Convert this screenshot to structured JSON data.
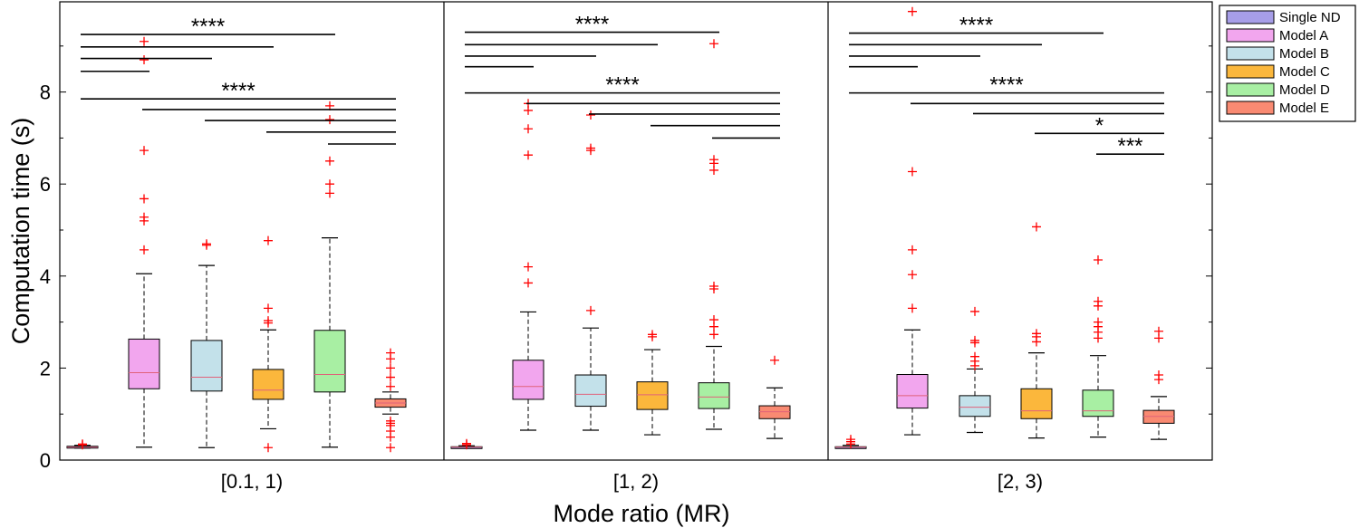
{
  "chart_data": {
    "type": "box",
    "xlabel": "Mode ratio (MR)",
    "ylabel": "Computation time (s)",
    "ylim": [
      0,
      10
    ],
    "yticks": [
      0,
      2,
      4,
      6,
      8
    ],
    "groups": [
      "[0.1, 1)",
      "[1, 2)",
      "[2, 3)"
    ],
    "series": [
      {
        "name": "Single ND",
        "color": "#a79ee8"
      },
      {
        "name": "Model A",
        "color": "#f2a6ee"
      },
      {
        "name": "Model B",
        "color": "#c3e1ea"
      },
      {
        "name": "Model C",
        "color": "#fbb73c"
      },
      {
        "name": "Model D",
        "color": "#a8efa3"
      },
      {
        "name": "Model E",
        "color": "#f98a72"
      }
    ],
    "boxes": [
      [
        {
          "q1": 0.27,
          "median": 0.28,
          "q3": 0.3,
          "whisker_low": 0.26,
          "whisker_high": 0.32,
          "outliers": [
            0.33,
            0.35
          ]
        },
        {
          "q1": 1.55,
          "median": 1.9,
          "q3": 2.63,
          "whisker_low": 0.28,
          "whisker_high": 4.05,
          "outliers": [
            4.57,
            5.2,
            5.28,
            5.68,
            6.73,
            8.7,
            9.1
          ]
        },
        {
          "q1": 1.5,
          "median": 1.8,
          "q3": 2.6,
          "whisker_low": 0.27,
          "whisker_high": 4.23,
          "outliers": [
            4.67,
            4.7
          ]
        },
        {
          "q1": 1.32,
          "median": 1.52,
          "q3": 1.97,
          "whisker_low": 0.68,
          "whisker_high": 2.83,
          "outliers": [
            0.27,
            2.98,
            3.03,
            3.3,
            4.77
          ]
        },
        {
          "q1": 1.48,
          "median": 1.86,
          "q3": 2.82,
          "whisker_low": 0.28,
          "whisker_high": 4.83,
          "outliers": [
            5.8,
            6.0,
            6.5,
            7.4,
            7.7
          ]
        },
        {
          "q1": 1.15,
          "median": 1.24,
          "q3": 1.33,
          "whisker_low": 1.0,
          "whisker_high": 1.48,
          "outliers": [
            0.27,
            0.5,
            0.63,
            0.75,
            0.8,
            0.85,
            1.6,
            1.8,
            2.0,
            2.2,
            2.33
          ]
        }
      ],
      [
        {
          "q1": 0.27,
          "median": 0.28,
          "q3": 0.29,
          "whisker_low": 0.26,
          "whisker_high": 0.31,
          "outliers": [
            0.33,
            0.36
          ]
        },
        {
          "q1": 1.32,
          "median": 1.6,
          "q3": 2.17,
          "whisker_low": 0.65,
          "whisker_high": 3.22,
          "outliers": [
            3.85,
            4.2,
            6.63,
            7.2,
            7.6,
            7.75
          ]
        },
        {
          "q1": 1.17,
          "median": 1.43,
          "q3": 1.85,
          "whisker_low": 0.65,
          "whisker_high": 2.87,
          "outliers": [
            3.25,
            6.73,
            6.78,
            7.5
          ]
        },
        {
          "q1": 1.1,
          "median": 1.42,
          "q3": 1.7,
          "whisker_low": 0.55,
          "whisker_high": 2.4,
          "outliers": [
            2.68,
            2.73
          ]
        },
        {
          "q1": 1.12,
          "median": 1.37,
          "q3": 1.68,
          "whisker_low": 0.67,
          "whisker_high": 2.47,
          "outliers": [
            2.73,
            2.9,
            3.05,
            3.72,
            3.78,
            6.3,
            6.45,
            6.53,
            9.05
          ]
        },
        {
          "q1": 0.9,
          "median": 1.05,
          "q3": 1.18,
          "whisker_low": 0.47,
          "whisker_high": 1.57,
          "outliers": [
            2.17
          ]
        }
      ],
      [
        {
          "q1": 0.27,
          "median": 0.28,
          "q3": 0.29,
          "whisker_low": 0.26,
          "whisker_high": 0.32,
          "outliers": [
            0.35,
            0.4,
            0.45
          ]
        },
        {
          "q1": 1.13,
          "median": 1.4,
          "q3": 1.86,
          "whisker_low": 0.55,
          "whisker_high": 2.83,
          "outliers": [
            3.3,
            4.03,
            4.57,
            6.27,
            9.75
          ]
        },
        {
          "q1": 0.95,
          "median": 1.15,
          "q3": 1.4,
          "whisker_low": 0.6,
          "whisker_high": 1.98,
          "outliers": [
            2.05,
            2.15,
            2.25,
            2.55,
            2.6,
            3.23
          ]
        },
        {
          "q1": 0.9,
          "median": 1.07,
          "q3": 1.55,
          "whisker_low": 0.48,
          "whisker_high": 2.33,
          "outliers": [
            2.57,
            2.68,
            2.75,
            5.07
          ]
        },
        {
          "q1": 0.95,
          "median": 1.07,
          "q3": 1.52,
          "whisker_low": 0.5,
          "whisker_high": 2.27,
          "outliers": [
            2.65,
            2.78,
            2.9,
            3.0,
            3.35,
            3.45,
            4.35
          ]
        },
        {
          "q1": 0.8,
          "median": 0.95,
          "q3": 1.08,
          "whisker_low": 0.45,
          "whisker_high": 1.38,
          "outliers": [
            1.75,
            1.85,
            2.65,
            2.8
          ]
        }
      ]
    ],
    "significance": [
      {
        "group": 0,
        "from": 0,
        "to": 1,
        "y": 8.45,
        "label": ""
      },
      {
        "group": 0,
        "from": 0,
        "to": 2,
        "y": 8.73,
        "label": ""
      },
      {
        "group": 0,
        "from": 0,
        "to": 3,
        "y": 8.98,
        "label": ""
      },
      {
        "group": 0,
        "from": 0,
        "to": 4,
        "y": 9.25,
        "label": "****"
      },
      {
        "group": 0,
        "from": 0,
        "to": 5,
        "y": 7.85,
        "label": "****"
      },
      {
        "group": 0,
        "from": 1,
        "to": 5,
        "y": 7.62,
        "label": ""
      },
      {
        "group": 0,
        "from": 2,
        "to": 5,
        "y": 7.38,
        "label": ""
      },
      {
        "group": 0,
        "from": 3,
        "to": 5,
        "y": 7.13,
        "label": ""
      },
      {
        "group": 0,
        "from": 4,
        "to": 5,
        "y": 6.87,
        "label": ""
      },
      {
        "group": 1,
        "from": 0,
        "to": 1,
        "y": 8.55,
        "label": ""
      },
      {
        "group": 1,
        "from": 0,
        "to": 2,
        "y": 8.78,
        "label": ""
      },
      {
        "group": 1,
        "from": 0,
        "to": 3,
        "y": 9.03,
        "label": ""
      },
      {
        "group": 1,
        "from": 0,
        "to": 4,
        "y": 9.3,
        "label": "****"
      },
      {
        "group": 1,
        "from": 0,
        "to": 5,
        "y": 7.98,
        "label": "****"
      },
      {
        "group": 1,
        "from": 1,
        "to": 5,
        "y": 7.75,
        "label": ""
      },
      {
        "group": 1,
        "from": 2,
        "to": 5,
        "y": 7.52,
        "label": ""
      },
      {
        "group": 1,
        "from": 3,
        "to": 5,
        "y": 7.27,
        "label": ""
      },
      {
        "group": 1,
        "from": 4,
        "to": 5,
        "y": 7.0,
        "label": ""
      },
      {
        "group": 2,
        "from": 0,
        "to": 1,
        "y": 8.55,
        "label": ""
      },
      {
        "group": 2,
        "from": 0,
        "to": 2,
        "y": 8.78,
        "label": ""
      },
      {
        "group": 2,
        "from": 0,
        "to": 3,
        "y": 9.03,
        "label": ""
      },
      {
        "group": 2,
        "from": 0,
        "to": 4,
        "y": 9.28,
        "label": "****"
      },
      {
        "group": 2,
        "from": 0,
        "to": 5,
        "y": 7.98,
        "label": "****"
      },
      {
        "group": 2,
        "from": 1,
        "to": 5,
        "y": 7.75,
        "label": ""
      },
      {
        "group": 2,
        "from": 2,
        "to": 5,
        "y": 7.53,
        "label": ""
      },
      {
        "group": 2,
        "from": 3,
        "to": 5,
        "y": 7.1,
        "label": "*"
      },
      {
        "group": 2,
        "from": 4,
        "to": 5,
        "y": 6.65,
        "label": "***"
      }
    ],
    "outlier_color": "#ff0000",
    "legend_position": "right"
  }
}
